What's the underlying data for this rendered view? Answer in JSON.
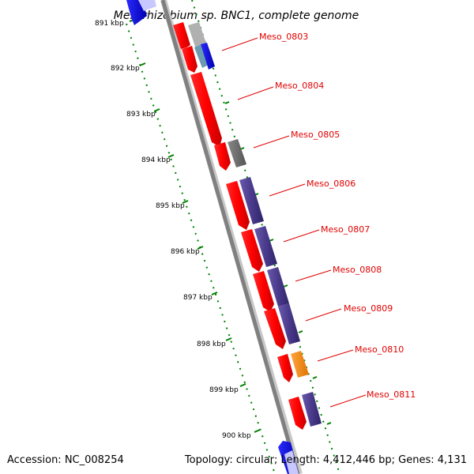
{
  "title": "Mesorhizobium sp. BNC1, complete genome",
  "accession": "Accession: NC_008254",
  "topology": "Topology: circular; Length: 4,412,446 bp; Genes: 4,131",
  "colors": {
    "backbone": "#808080",
    "forward_cds": "#ff0000",
    "reverse_cds": "#4a3a8c",
    "trna_like": "#0000ff",
    "misc_feature": "#777777",
    "orange_feature": "#ff8c00",
    "tick": "#008000",
    "label": "#e00000"
  },
  "ticks": [
    "891 kbp",
    "892 kbp",
    "893 kbp",
    "894 kbp",
    "895 kbp",
    "896 kbp",
    "897 kbp",
    "898 kbp",
    "899 kbp",
    "900 kbp"
  ],
  "gene_labels": [
    "Meso_0803",
    "Meso_0804",
    "Meso_0805",
    "Meso_0806",
    "Meso_0807",
    "Meso_0808",
    "Meso_0809",
    "Meso_0810",
    "Meso_0811"
  ]
}
